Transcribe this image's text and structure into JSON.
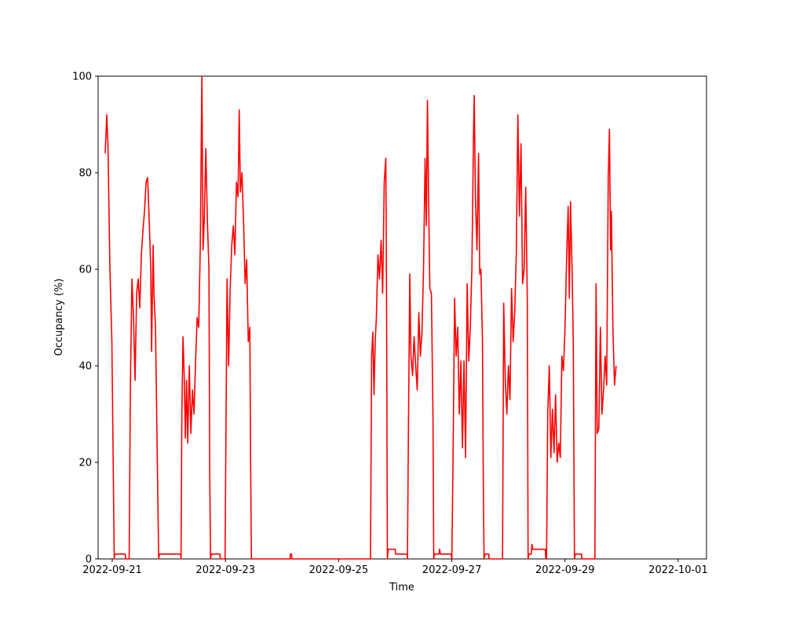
{
  "chart_data": {
    "type": "line",
    "title": "",
    "xlabel": "Time",
    "ylabel": "Occupancy (%)",
    "xlim": [
      "2022-09-20T18:00",
      "2022-10-01T12:00"
    ],
    "ylim": [
      0,
      100
    ],
    "grid": false,
    "x_ticks": [
      "2022-09-21",
      "2022-09-23",
      "2022-09-25",
      "2022-09-27",
      "2022-09-29",
      "2022-10-01"
    ],
    "y_ticks": [
      0,
      20,
      40,
      60,
      80,
      100
    ],
    "series": [
      {
        "color": "#ff0000",
        "points": [
          [
            "2022-09-20T21:00",
            84
          ],
          [
            "2022-09-20T21:40",
            92
          ],
          [
            "2022-09-20T22:10",
            86
          ],
          [
            "2022-09-20T23:00",
            60
          ],
          [
            "2022-09-20T23:50",
            45
          ],
          [
            "2022-09-21T00:50",
            0
          ],
          [
            "2022-09-21T01:00",
            1
          ],
          [
            "2022-09-21T05:30",
            1
          ],
          [
            "2022-09-21T05:40",
            0
          ],
          [
            "2022-09-21T07:10",
            0
          ],
          [
            "2022-09-21T07:40",
            35
          ],
          [
            "2022-09-21T08:20",
            58
          ],
          [
            "2022-09-21T09:00",
            50
          ],
          [
            "2022-09-21T09:40",
            37
          ],
          [
            "2022-09-21T10:20",
            55
          ],
          [
            "2022-09-21T11:00",
            58
          ],
          [
            "2022-09-21T11:40",
            52
          ],
          [
            "2022-09-21T12:20",
            63
          ],
          [
            "2022-09-21T13:00",
            68
          ],
          [
            "2022-09-21T13:40",
            72
          ],
          [
            "2022-09-21T14:20",
            78
          ],
          [
            "2022-09-21T15:00",
            79
          ],
          [
            "2022-09-21T15:40",
            70
          ],
          [
            "2022-09-21T16:20",
            60
          ],
          [
            "2022-09-21T16:40",
            43
          ],
          [
            "2022-09-21T17:20",
            65
          ],
          [
            "2022-09-21T17:40",
            55
          ],
          [
            "2022-09-21T18:20",
            48
          ],
          [
            "2022-09-21T19:40",
            0
          ],
          [
            "2022-09-21T20:00",
            1
          ],
          [
            "2022-09-22T05:00",
            1
          ],
          [
            "2022-09-22T05:10",
            0
          ],
          [
            "2022-09-22T05:30",
            30
          ],
          [
            "2022-09-22T06:00",
            46
          ],
          [
            "2022-09-22T06:30",
            38
          ],
          [
            "2022-09-22T07:00",
            25
          ],
          [
            "2022-09-22T07:30",
            37
          ],
          [
            "2022-09-22T08:00",
            24
          ],
          [
            "2022-09-22T08:40",
            40
          ],
          [
            "2022-09-22T09:20",
            26
          ],
          [
            "2022-09-22T10:00",
            35
          ],
          [
            "2022-09-22T10:40",
            30
          ],
          [
            "2022-09-22T11:20",
            41
          ],
          [
            "2022-09-22T12:00",
            50
          ],
          [
            "2022-09-22T12:40",
            48
          ],
          [
            "2022-09-22T13:20",
            65
          ],
          [
            "2022-09-22T14:00",
            100
          ],
          [
            "2022-09-22T14:30",
            64
          ],
          [
            "2022-09-22T15:00",
            70
          ],
          [
            "2022-09-22T15:40",
            85
          ],
          [
            "2022-09-22T16:20",
            70
          ],
          [
            "2022-09-22T17:00",
            60
          ],
          [
            "2022-09-22T17:20",
            18
          ],
          [
            "2022-09-22T17:40",
            0
          ],
          [
            "2022-09-22T18:00",
            1
          ],
          [
            "2022-09-22T21:40",
            1
          ],
          [
            "2022-09-22T21:50",
            0
          ],
          [
            "2022-09-22T23:50",
            0
          ],
          [
            "2022-09-23T00:40",
            58
          ],
          [
            "2022-09-23T01:20",
            40
          ],
          [
            "2022-09-23T02:00",
            56
          ],
          [
            "2022-09-23T02:40",
            65
          ],
          [
            "2022-09-23T03:20",
            69
          ],
          [
            "2022-09-23T04:00",
            63
          ],
          [
            "2022-09-23T04:40",
            78
          ],
          [
            "2022-09-23T05:20",
            75
          ],
          [
            "2022-09-23T05:50",
            93
          ],
          [
            "2022-09-23T06:20",
            76
          ],
          [
            "2022-09-23T07:00",
            80
          ],
          [
            "2022-09-23T07:40",
            70
          ],
          [
            "2022-09-23T08:20",
            57
          ],
          [
            "2022-09-23T09:00",
            62
          ],
          [
            "2022-09-23T09:40",
            45
          ],
          [
            "2022-09-23T10:20",
            48
          ],
          [
            "2022-09-23T10:40",
            20
          ],
          [
            "2022-09-23T11:00",
            0
          ],
          [
            "2022-09-24T03:20",
            0
          ],
          [
            "2022-09-24T03:30",
            1
          ],
          [
            "2022-09-24T04:00",
            1
          ],
          [
            "2022-09-24T04:10",
            0
          ],
          [
            "2022-09-25T13:30",
            0
          ],
          [
            "2022-09-25T14:00",
            42
          ],
          [
            "2022-09-25T14:30",
            47
          ],
          [
            "2022-09-25T15:00",
            34
          ],
          [
            "2022-09-25T15:30",
            45
          ],
          [
            "2022-09-25T16:00",
            50
          ],
          [
            "2022-09-25T16:40",
            63
          ],
          [
            "2022-09-25T17:20",
            58
          ],
          [
            "2022-09-25T18:00",
            66
          ],
          [
            "2022-09-25T18:40",
            55
          ],
          [
            "2022-09-25T19:20",
            78
          ],
          [
            "2022-09-25T20:00",
            83
          ],
          [
            "2022-09-25T20:20",
            52
          ],
          [
            "2022-09-25T20:40",
            0
          ],
          [
            "2022-09-25T21:00",
            2
          ],
          [
            "2022-09-26T00:00",
            2
          ],
          [
            "2022-09-26T00:10",
            1
          ],
          [
            "2022-09-26T05:00",
            1
          ],
          [
            "2022-09-26T05:10",
            0
          ],
          [
            "2022-09-26T05:40",
            31
          ],
          [
            "2022-09-26T06:10",
            59
          ],
          [
            "2022-09-26T06:40",
            42
          ],
          [
            "2022-09-26T07:20",
            38
          ],
          [
            "2022-09-26T08:00",
            46
          ],
          [
            "2022-09-26T08:40",
            40
          ],
          [
            "2022-09-26T09:20",
            35
          ],
          [
            "2022-09-26T10:00",
            51
          ],
          [
            "2022-09-26T10:40",
            42
          ],
          [
            "2022-09-26T11:20",
            47
          ],
          [
            "2022-09-26T12:00",
            60
          ],
          [
            "2022-09-26T12:40",
            83
          ],
          [
            "2022-09-26T13:10",
            69
          ],
          [
            "2022-09-26T13:40",
            95
          ],
          [
            "2022-09-26T14:10",
            74
          ],
          [
            "2022-09-26T14:40",
            56
          ],
          [
            "2022-09-26T15:20",
            55
          ],
          [
            "2022-09-26T16:00",
            30
          ],
          [
            "2022-09-26T16:20",
            0
          ],
          [
            "2022-09-26T16:40",
            1
          ],
          [
            "2022-09-26T18:30",
            1
          ],
          [
            "2022-09-26T18:50",
            2
          ],
          [
            "2022-09-26T19:10",
            1
          ],
          [
            "2022-09-26T23:40",
            1
          ],
          [
            "2022-09-27T00:00",
            0
          ],
          [
            "2022-09-27T00:30",
            20
          ],
          [
            "2022-09-27T01:10",
            54
          ],
          [
            "2022-09-27T01:50",
            42
          ],
          [
            "2022-09-27T02:30",
            48
          ],
          [
            "2022-09-27T03:10",
            30
          ],
          [
            "2022-09-27T03:50",
            41
          ],
          [
            "2022-09-27T04:30",
            23
          ],
          [
            "2022-09-27T05:10",
            41
          ],
          [
            "2022-09-27T05:50",
            21
          ],
          [
            "2022-09-27T06:30",
            57
          ],
          [
            "2022-09-27T07:10",
            41
          ],
          [
            "2022-09-27T07:50",
            48
          ],
          [
            "2022-09-27T08:30",
            60
          ],
          [
            "2022-09-27T09:10",
            87
          ],
          [
            "2022-09-27T09:30",
            96
          ],
          [
            "2022-09-27T10:00",
            75
          ],
          [
            "2022-09-27T10:40",
            64
          ],
          [
            "2022-09-27T11:20",
            84
          ],
          [
            "2022-09-27T11:50",
            59
          ],
          [
            "2022-09-27T12:20",
            60
          ],
          [
            "2022-09-27T13:00",
            45
          ],
          [
            "2022-09-27T13:20",
            17
          ],
          [
            "2022-09-27T13:40",
            0
          ],
          [
            "2022-09-27T14:00",
            1
          ],
          [
            "2022-09-27T15:40",
            1
          ],
          [
            "2022-09-27T15:50",
            0
          ],
          [
            "2022-09-27T21:30",
            0
          ],
          [
            "2022-09-27T22:00",
            53
          ],
          [
            "2022-09-27T22:40",
            37
          ],
          [
            "2022-09-27T23:20",
            30
          ],
          [
            "2022-09-28T00:00",
            40
          ],
          [
            "2022-09-28T00:40",
            33
          ],
          [
            "2022-09-28T01:20",
            56
          ],
          [
            "2022-09-28T02:00",
            45
          ],
          [
            "2022-09-28T02:40",
            51
          ],
          [
            "2022-09-28T03:20",
            63
          ],
          [
            "2022-09-28T04:00",
            92
          ],
          [
            "2022-09-28T04:40",
            71
          ],
          [
            "2022-09-28T05:20",
            86
          ],
          [
            "2022-09-28T06:00",
            57
          ],
          [
            "2022-09-28T06:40",
            60
          ],
          [
            "2022-09-28T07:20",
            77
          ],
          [
            "2022-09-28T08:00",
            54
          ],
          [
            "2022-09-28T08:20",
            0
          ],
          [
            "2022-09-28T08:40",
            1
          ],
          [
            "2022-09-28T09:40",
            1
          ],
          [
            "2022-09-28T10:00",
            3
          ],
          [
            "2022-09-28T10:20",
            2
          ],
          [
            "2022-09-28T15:40",
            2
          ],
          [
            "2022-09-28T15:50",
            0
          ],
          [
            "2022-09-28T16:10",
            0
          ],
          [
            "2022-09-28T16:40",
            30
          ],
          [
            "2022-09-28T17:20",
            40
          ],
          [
            "2022-09-28T18:00",
            21
          ],
          [
            "2022-09-28T18:40",
            31
          ],
          [
            "2022-09-28T19:20",
            22
          ],
          [
            "2022-09-28T20:00",
            34
          ],
          [
            "2022-09-28T20:40",
            20
          ],
          [
            "2022-09-28T21:20",
            24
          ],
          [
            "2022-09-28T22:00",
            21
          ],
          [
            "2022-09-28T22:40",
            42
          ],
          [
            "2022-09-28T23:20",
            39
          ],
          [
            "2022-09-29T00:00",
            48
          ],
          [
            "2022-09-29T00:40",
            62
          ],
          [
            "2022-09-29T01:20",
            73
          ],
          [
            "2022-09-29T01:50",
            54
          ],
          [
            "2022-09-29T02:20",
            74
          ],
          [
            "2022-09-29T03:00",
            60
          ],
          [
            "2022-09-29T03:30",
            45
          ],
          [
            "2022-09-29T04:00",
            0
          ],
          [
            "2022-09-29T04:20",
            1
          ],
          [
            "2022-09-29T07:00",
            1
          ],
          [
            "2022-09-29T07:10",
            0
          ],
          [
            "2022-09-29T12:40",
            0
          ],
          [
            "2022-09-29T13:10",
            57
          ],
          [
            "2022-09-29T13:40",
            26
          ],
          [
            "2022-09-29T14:20",
            27
          ],
          [
            "2022-09-29T15:00",
            48
          ],
          [
            "2022-09-29T15:40",
            30
          ],
          [
            "2022-09-29T16:20",
            35
          ],
          [
            "2022-09-29T17:00",
            42
          ],
          [
            "2022-09-29T17:40",
            36
          ],
          [
            "2022-09-29T18:20",
            79
          ],
          [
            "2022-09-29T18:50",
            89
          ],
          [
            "2022-09-29T19:20",
            64
          ],
          [
            "2022-09-29T19:40",
            72
          ],
          [
            "2022-09-29T20:20",
            47
          ],
          [
            "2022-09-29T21:00",
            36
          ],
          [
            "2022-09-29T21:40",
            40
          ]
        ]
      }
    ]
  }
}
